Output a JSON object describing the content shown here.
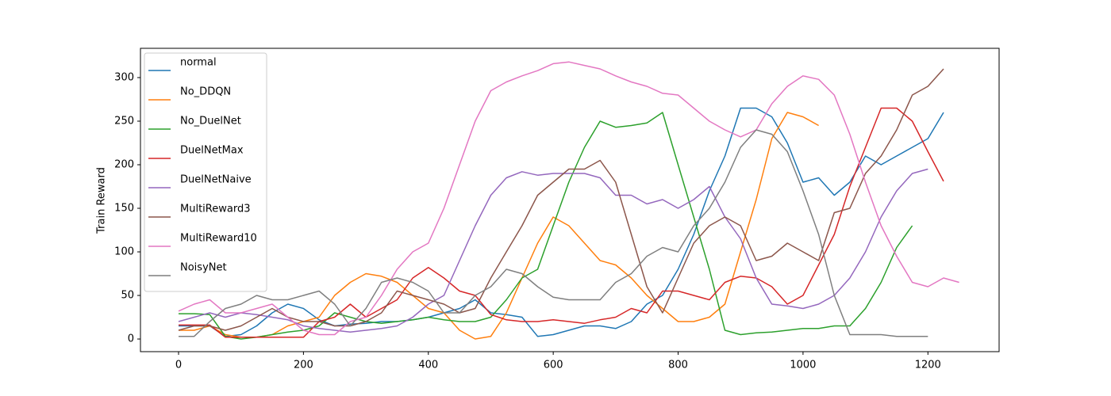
{
  "chart_data": {
    "type": "line",
    "ylabel": "Train Reward",
    "x": [
      0,
      25,
      50,
      75,
      100,
      125,
      150,
      175,
      200,
      225,
      250,
      275,
      300,
      325,
      350,
      375,
      400,
      425,
      450,
      475,
      500,
      525,
      550,
      575,
      600,
      625,
      650,
      675,
      700,
      725,
      750,
      775,
      800,
      825,
      850,
      875,
      900,
      925,
      950,
      975,
      1000,
      1025,
      1050,
      1075,
      1100,
      1125,
      1150,
      1175,
      1200,
      1225,
      1250
    ],
    "xlim": [
      -61,
      1314
    ],
    "ylim": [
      -14.5,
      333.6
    ],
    "xticks": [
      0,
      200,
      400,
      600,
      800,
      1000,
      1200
    ],
    "yticks": [
      0,
      50,
      100,
      150,
      200,
      250,
      300
    ],
    "grid": false,
    "legend": "upper left",
    "series": [
      {
        "name": "normal",
        "color": "#1f77b4",
        "values": [
          15,
          15,
          15,
          3,
          5,
          15,
          30,
          40,
          35,
          22,
          15,
          17,
          18,
          20,
          20,
          22,
          25,
          30,
          35,
          45,
          30,
          28,
          25,
          3,
          5,
          10,
          15,
          15,
          12,
          20,
          40,
          50,
          80,
          120,
          170,
          210,
          265,
          265,
          255,
          225,
          180,
          185,
          165,
          180,
          210,
          200,
          210,
          220,
          230,
          260,
          null
        ]
      },
      {
        "name": "No_DDQN",
        "color": "#ff7f0e",
        "values": [
          10,
          10,
          15,
          5,
          2,
          2,
          5,
          15,
          20,
          25,
          50,
          65,
          75,
          72,
          65,
          50,
          35,
          30,
          10,
          0,
          3,
          30,
          70,
          110,
          140,
          130,
          110,
          90,
          85,
          70,
          50,
          35,
          20,
          20,
          25,
          40,
          100,
          160,
          230,
          260,
          255,
          245,
          null,
          null,
          null,
          null,
          null,
          null,
          null,
          null,
          null
        ]
      },
      {
        "name": "No_DuelNet",
        "color": "#2ca02c",
        "values": [
          29,
          29,
          28,
          3,
          0,
          2,
          5,
          8,
          10,
          15,
          30,
          25,
          20,
          18,
          20,
          22,
          25,
          22,
          20,
          20,
          25,
          45,
          70,
          80,
          130,
          180,
          220,
          250,
          243,
          245,
          248,
          260,
          200,
          140,
          80,
          10,
          5,
          7,
          8,
          10,
          12,
          12,
          15,
          15,
          35,
          65,
          105,
          130,
          null,
          null,
          null
        ]
      },
      {
        "name": "DuelNetMax",
        "color": "#d62728",
        "values": [
          16,
          16,
          16,
          2,
          2,
          2,
          2,
          2,
          2,
          20,
          25,
          40,
          25,
          35,
          45,
          70,
          82,
          70,
          55,
          50,
          28,
          22,
          20,
          20,
          22,
          20,
          18,
          22,
          25,
          35,
          30,
          55,
          55,
          50,
          45,
          65,
          72,
          70,
          60,
          40,
          50,
          85,
          120,
          175,
          220,
          265,
          265,
          250,
          215,
          181,
          null
        ]
      },
      {
        "name": "DuelNetNaive",
        "color": "#9467bd",
        "values": [
          20,
          25,
          30,
          25,
          30,
          28,
          25,
          22,
          15,
          12,
          10,
          8,
          10,
          12,
          15,
          25,
          40,
          50,
          90,
          130,
          165,
          185,
          192,
          188,
          190,
          190,
          190,
          185,
          165,
          165,
          155,
          160,
          150,
          160,
          175,
          140,
          115,
          70,
          40,
          38,
          35,
          40,
          50,
          70,
          100,
          140,
          170,
          190,
          195,
          null,
          null
        ]
      },
      {
        "name": "MultiReward3",
        "color": "#8c564b",
        "values": [
          10,
          15,
          15,
          10,
          15,
          25,
          35,
          25,
          20,
          20,
          15,
          15,
          20,
          30,
          55,
          50,
          45,
          40,
          30,
          35,
          70,
          100,
          130,
          165,
          180,
          195,
          195,
          205,
          180,
          120,
          60,
          30,
          70,
          110,
          130,
          140,
          130,
          90,
          95,
          110,
          100,
          90,
          145,
          150,
          190,
          210,
          240,
          280,
          290,
          310,
          null
        ]
      },
      {
        "name": "MultiReward10",
        "color": "#e377c2",
        "values": [
          32,
          40,
          45,
          30,
          30,
          35,
          40,
          25,
          10,
          5,
          5,
          20,
          25,
          50,
          80,
          100,
          110,
          150,
          200,
          250,
          285,
          295,
          302,
          308,
          316,
          318,
          314,
          310,
          302,
          295,
          290,
          282,
          280,
          265,
          250,
          240,
          232,
          240,
          270,
          290,
          302,
          298,
          280,
          235,
          180,
          130,
          95,
          65,
          60,
          70,
          65
        ]
      },
      {
        "name": "NoisyNet",
        "color": "#7f7f7f",
        "values": [
          3,
          3,
          20,
          35,
          40,
          50,
          45,
          45,
          50,
          55,
          40,
          15,
          35,
          65,
          70,
          65,
          55,
          30,
          30,
          50,
          60,
          80,
          75,
          60,
          48,
          45,
          45,
          45,
          65,
          75,
          95,
          105,
          100,
          130,
          150,
          180,
          220,
          240,
          235,
          215,
          170,
          120,
          50,
          5,
          5,
          5,
          3,
          3,
          3,
          null,
          null
        ]
      }
    ]
  }
}
